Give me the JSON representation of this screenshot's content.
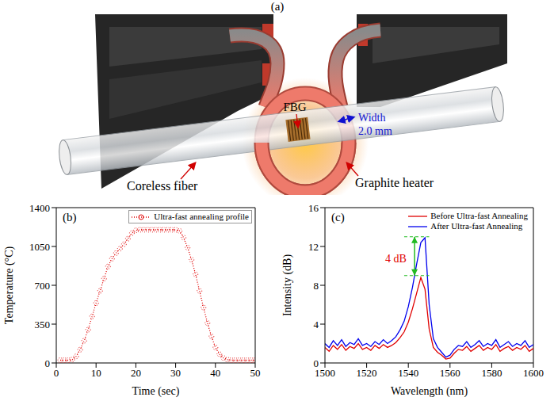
{
  "diagram": {
    "panel_label": "(a)",
    "labels": {
      "fbg": "FBG",
      "width": "Width",
      "width_value": "2.0 mm",
      "fiber": "Coreless fiber",
      "heater": "Graphite heater"
    }
  },
  "chart_data": [
    {
      "panel_label": "(b)",
      "type": "line",
      "x": [
        1,
        2,
        3,
        4,
        5,
        6,
        7,
        8,
        9,
        10,
        11,
        12,
        13,
        14,
        15,
        16,
        17,
        18,
        19,
        20,
        21,
        22,
        23,
        24,
        25,
        26,
        27,
        28,
        29,
        30,
        31,
        32,
        33,
        34,
        35,
        36,
        37,
        38,
        39,
        40,
        41,
        42,
        43,
        44,
        45,
        46,
        47,
        48,
        49,
        50
      ],
      "series": [
        {
          "name": "Ultra-fast annealing profile",
          "color": "#e00000",
          "marker": "circle",
          "line_style": "dotted",
          "values": [
            25,
            25,
            25,
            30,
            60,
            120,
            200,
            300,
            420,
            540,
            650,
            760,
            870,
            940,
            990,
            1030,
            1070,
            1120,
            1170,
            1195,
            1200,
            1200,
            1200,
            1200,
            1200,
            1200,
            1200,
            1200,
            1200,
            1200,
            1190,
            1130,
            1040,
            930,
            800,
            650,
            500,
            360,
            240,
            140,
            80,
            45,
            30,
            25,
            25,
            25,
            25,
            25,
            25,
            25
          ]
        }
      ],
      "xlabel": "Time (sec)",
      "ylabel": "Temperature (°C)",
      "xlim": [
        0,
        50
      ],
      "ylim": [
        0,
        1400
      ],
      "xticks": [
        0,
        10,
        20,
        30,
        40,
        50
      ],
      "yticks": [
        0,
        350,
        700,
        1050,
        1400
      ],
      "grid": false,
      "legend": "upper right"
    },
    {
      "panel_label": "(c)",
      "type": "line",
      "x": [
        1500,
        1502,
        1504,
        1506,
        1508,
        1510,
        1512,
        1514,
        1516,
        1518,
        1520,
        1522,
        1524,
        1526,
        1528,
        1530,
        1532,
        1534,
        1536,
        1538,
        1540,
        1542,
        1544,
        1546,
        1548,
        1550,
        1552,
        1554,
        1556,
        1558,
        1560,
        1562,
        1564,
        1566,
        1568,
        1570,
        1572,
        1574,
        1576,
        1578,
        1580,
        1582,
        1584,
        1586,
        1588,
        1590,
        1592,
        1594,
        1596,
        1598,
        1600
      ],
      "series": [
        {
          "name": "Before Ultra-fast Annealing",
          "color": "#e00000",
          "line_style": "solid",
          "values": [
            1.6,
            1.2,
            1.8,
            1.4,
            1.9,
            1.3,
            1.7,
            1.5,
            2.0,
            1.4,
            1.6,
            1.3,
            1.8,
            1.5,
            1.9,
            1.6,
            1.8,
            2.1,
            2.6,
            3.2,
            4.2,
            5.6,
            7.2,
            8.8,
            7.6,
            3.5,
            1.6,
            1.1,
            0.8,
            0.4,
            0.5,
            1.0,
            1.4,
            1.3,
            1.7,
            1.2,
            1.5,
            1.8,
            1.3,
            1.6,
            1.4,
            1.9,
            1.2,
            1.5,
            1.7,
            1.3,
            1.6,
            1.4,
            1.8,
            1.2,
            1.5
          ]
        },
        {
          "name": "After Ultra-fast Annealing",
          "color": "#0000ee",
          "line_style": "solid",
          "values": [
            2.0,
            1.6,
            2.3,
            1.8,
            2.4,
            1.7,
            2.1,
            1.9,
            2.5,
            1.8,
            2.0,
            1.7,
            2.2,
            1.9,
            2.4,
            2.0,
            2.3,
            2.7,
            3.4,
            4.3,
            5.8,
            7.8,
            10.2,
            12.4,
            12.9,
            6.0,
            2.5,
            1.6,
            1.1,
            0.6,
            0.8,
            1.4,
            1.8,
            1.7,
            2.2,
            1.6,
            1.9,
            2.3,
            1.7,
            2.0,
            1.8,
            2.4,
            1.6,
            1.9,
            2.2,
            1.7,
            2.0,
            1.8,
            2.3,
            1.6,
            1.9
          ]
        }
      ],
      "xlabel": "Wavelength (nm)",
      "ylabel": "Intensity (dB)",
      "xlim": [
        1500,
        1600
      ],
      "ylim": [
        0,
        16
      ],
      "xticks": [
        1500,
        1520,
        1540,
        1560,
        1580,
        1600
      ],
      "yticks": [
        0,
        4,
        8,
        12,
        16
      ],
      "grid": false,
      "legend": "upper right",
      "annotations": [
        {
          "text": "4 dB",
          "color": "#e00000",
          "x": 1534,
          "y": 10.8,
          "arrow_x": 1543,
          "from": 9,
          "to": 13,
          "span": [
            1538,
            1550
          ],
          "arrow_color": "#22bb22"
        }
      ]
    }
  ]
}
